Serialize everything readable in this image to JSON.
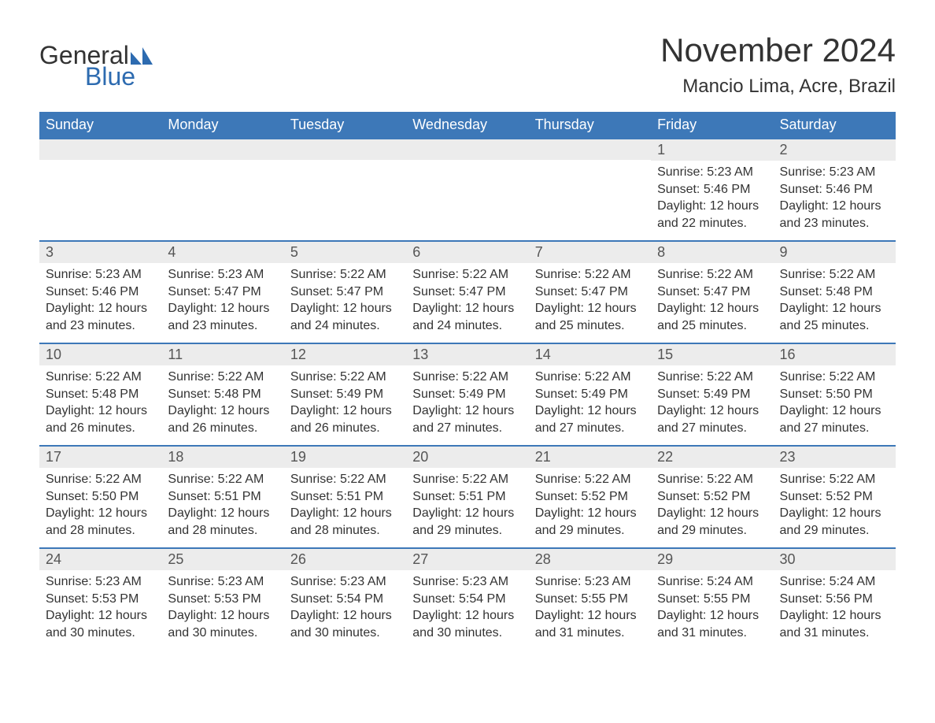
{
  "logo": {
    "text1": "General",
    "text2": "Blue",
    "icon_color": "#2d6bb0"
  },
  "title": "November 2024",
  "location": "Mancio Lima, Acre, Brazil",
  "colors": {
    "header_bg": "#3d78b8",
    "header_text": "#ffffff",
    "daynum_bg": "#ececec",
    "daynum_border": "#3d78b8",
    "body_text": "#333333",
    "page_bg": "#ffffff",
    "logo_blue": "#2d6bb0"
  },
  "font": {
    "family": "Arial",
    "title_size": 42,
    "location_size": 24,
    "header_size": 18,
    "daynum_size": 18,
    "body_size": 16
  },
  "layout": {
    "columns": 7,
    "rows": 5,
    "first_day_column_index": 5
  },
  "weekdays": [
    "Sunday",
    "Monday",
    "Tuesday",
    "Wednesday",
    "Thursday",
    "Friday",
    "Saturday"
  ],
  "days": [
    {
      "n": "1",
      "sunrise": "Sunrise: 5:23 AM",
      "sunset": "Sunset: 5:46 PM",
      "daylight": "Daylight: 12 hours and 22 minutes."
    },
    {
      "n": "2",
      "sunrise": "Sunrise: 5:23 AM",
      "sunset": "Sunset: 5:46 PM",
      "daylight": "Daylight: 12 hours and 23 minutes."
    },
    {
      "n": "3",
      "sunrise": "Sunrise: 5:23 AM",
      "sunset": "Sunset: 5:46 PM",
      "daylight": "Daylight: 12 hours and 23 minutes."
    },
    {
      "n": "4",
      "sunrise": "Sunrise: 5:23 AM",
      "sunset": "Sunset: 5:47 PM",
      "daylight": "Daylight: 12 hours and 23 minutes."
    },
    {
      "n": "5",
      "sunrise": "Sunrise: 5:22 AM",
      "sunset": "Sunset: 5:47 PM",
      "daylight": "Daylight: 12 hours and 24 minutes."
    },
    {
      "n": "6",
      "sunrise": "Sunrise: 5:22 AM",
      "sunset": "Sunset: 5:47 PM",
      "daylight": "Daylight: 12 hours and 24 minutes."
    },
    {
      "n": "7",
      "sunrise": "Sunrise: 5:22 AM",
      "sunset": "Sunset: 5:47 PM",
      "daylight": "Daylight: 12 hours and 25 minutes."
    },
    {
      "n": "8",
      "sunrise": "Sunrise: 5:22 AM",
      "sunset": "Sunset: 5:47 PM",
      "daylight": "Daylight: 12 hours and 25 minutes."
    },
    {
      "n": "9",
      "sunrise": "Sunrise: 5:22 AM",
      "sunset": "Sunset: 5:48 PM",
      "daylight": "Daylight: 12 hours and 25 minutes."
    },
    {
      "n": "10",
      "sunrise": "Sunrise: 5:22 AM",
      "sunset": "Sunset: 5:48 PM",
      "daylight": "Daylight: 12 hours and 26 minutes."
    },
    {
      "n": "11",
      "sunrise": "Sunrise: 5:22 AM",
      "sunset": "Sunset: 5:48 PM",
      "daylight": "Daylight: 12 hours and 26 minutes."
    },
    {
      "n": "12",
      "sunrise": "Sunrise: 5:22 AM",
      "sunset": "Sunset: 5:49 PM",
      "daylight": "Daylight: 12 hours and 26 minutes."
    },
    {
      "n": "13",
      "sunrise": "Sunrise: 5:22 AM",
      "sunset": "Sunset: 5:49 PM",
      "daylight": "Daylight: 12 hours and 27 minutes."
    },
    {
      "n": "14",
      "sunrise": "Sunrise: 5:22 AM",
      "sunset": "Sunset: 5:49 PM",
      "daylight": "Daylight: 12 hours and 27 minutes."
    },
    {
      "n": "15",
      "sunrise": "Sunrise: 5:22 AM",
      "sunset": "Sunset: 5:49 PM",
      "daylight": "Daylight: 12 hours and 27 minutes."
    },
    {
      "n": "16",
      "sunrise": "Sunrise: 5:22 AM",
      "sunset": "Sunset: 5:50 PM",
      "daylight": "Daylight: 12 hours and 27 minutes."
    },
    {
      "n": "17",
      "sunrise": "Sunrise: 5:22 AM",
      "sunset": "Sunset: 5:50 PM",
      "daylight": "Daylight: 12 hours and 28 minutes."
    },
    {
      "n": "18",
      "sunrise": "Sunrise: 5:22 AM",
      "sunset": "Sunset: 5:51 PM",
      "daylight": "Daylight: 12 hours and 28 minutes."
    },
    {
      "n": "19",
      "sunrise": "Sunrise: 5:22 AM",
      "sunset": "Sunset: 5:51 PM",
      "daylight": "Daylight: 12 hours and 28 minutes."
    },
    {
      "n": "20",
      "sunrise": "Sunrise: 5:22 AM",
      "sunset": "Sunset: 5:51 PM",
      "daylight": "Daylight: 12 hours and 29 minutes."
    },
    {
      "n": "21",
      "sunrise": "Sunrise: 5:22 AM",
      "sunset": "Sunset: 5:52 PM",
      "daylight": "Daylight: 12 hours and 29 minutes."
    },
    {
      "n": "22",
      "sunrise": "Sunrise: 5:22 AM",
      "sunset": "Sunset: 5:52 PM",
      "daylight": "Daylight: 12 hours and 29 minutes."
    },
    {
      "n": "23",
      "sunrise": "Sunrise: 5:22 AM",
      "sunset": "Sunset: 5:52 PM",
      "daylight": "Daylight: 12 hours and 29 minutes."
    },
    {
      "n": "24",
      "sunrise": "Sunrise: 5:23 AM",
      "sunset": "Sunset: 5:53 PM",
      "daylight": "Daylight: 12 hours and 30 minutes."
    },
    {
      "n": "25",
      "sunrise": "Sunrise: 5:23 AM",
      "sunset": "Sunset: 5:53 PM",
      "daylight": "Daylight: 12 hours and 30 minutes."
    },
    {
      "n": "26",
      "sunrise": "Sunrise: 5:23 AM",
      "sunset": "Sunset: 5:54 PM",
      "daylight": "Daylight: 12 hours and 30 minutes."
    },
    {
      "n": "27",
      "sunrise": "Sunrise: 5:23 AM",
      "sunset": "Sunset: 5:54 PM",
      "daylight": "Daylight: 12 hours and 30 minutes."
    },
    {
      "n": "28",
      "sunrise": "Sunrise: 5:23 AM",
      "sunset": "Sunset: 5:55 PM",
      "daylight": "Daylight: 12 hours and 31 minutes."
    },
    {
      "n": "29",
      "sunrise": "Sunrise: 5:24 AM",
      "sunset": "Sunset: 5:55 PM",
      "daylight": "Daylight: 12 hours and 31 minutes."
    },
    {
      "n": "30",
      "sunrise": "Sunrise: 5:24 AM",
      "sunset": "Sunset: 5:56 PM",
      "daylight": "Daylight: 12 hours and 31 minutes."
    }
  ]
}
